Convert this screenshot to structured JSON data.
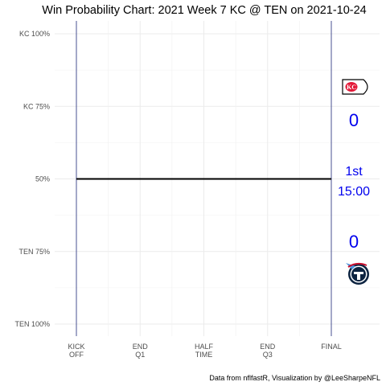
{
  "chart_data": {
    "type": "line",
    "title": "Win Probability Chart: 2021 Week 7 KC @ TEN on 2021-10-24",
    "caption": "Data from nflfastR, Visualization by @LeeSharpeNFL",
    "y_ticks": [
      "KC 100%",
      "KC 75%",
      "50%",
      "TEN 75%",
      "TEN 100%"
    ],
    "y_tick_values": [
      1.0,
      0.75,
      0.5,
      0.25,
      0.0
    ],
    "ylim": [
      0,
      1
    ],
    "x_ticks": [
      {
        "line1": "KICK",
        "line2": "OFF",
        "value": 0
      },
      {
        "line1": "END",
        "line2": "Q1",
        "value": 900
      },
      {
        "line1": "HALF",
        "line2": "TIME",
        "value": 1800
      },
      {
        "line1": "END",
        "line2": "Q3",
        "value": 2700
      },
      {
        "line1": "FINAL",
        "line2": "",
        "value": 3600
      }
    ],
    "xlim": [
      0,
      3600
    ],
    "series": [
      {
        "x": [
          0,
          3600
        ],
        "y": [
          0.5,
          0.5
        ],
        "color": "#000000"
      }
    ],
    "vertical_markers": [
      0,
      3600
    ],
    "marker_color": "#1f2a7a",
    "grid": true,
    "away_team": {
      "abbr": "KC",
      "score": "0",
      "logo_icon": "chiefs-logo-icon"
    },
    "home_team": {
      "abbr": "TEN",
      "score": "0",
      "logo_icon": "titans-logo-icon"
    },
    "game_clock": {
      "quarter": "1st",
      "time": "15:00"
    },
    "score_color": "#0000ee"
  }
}
